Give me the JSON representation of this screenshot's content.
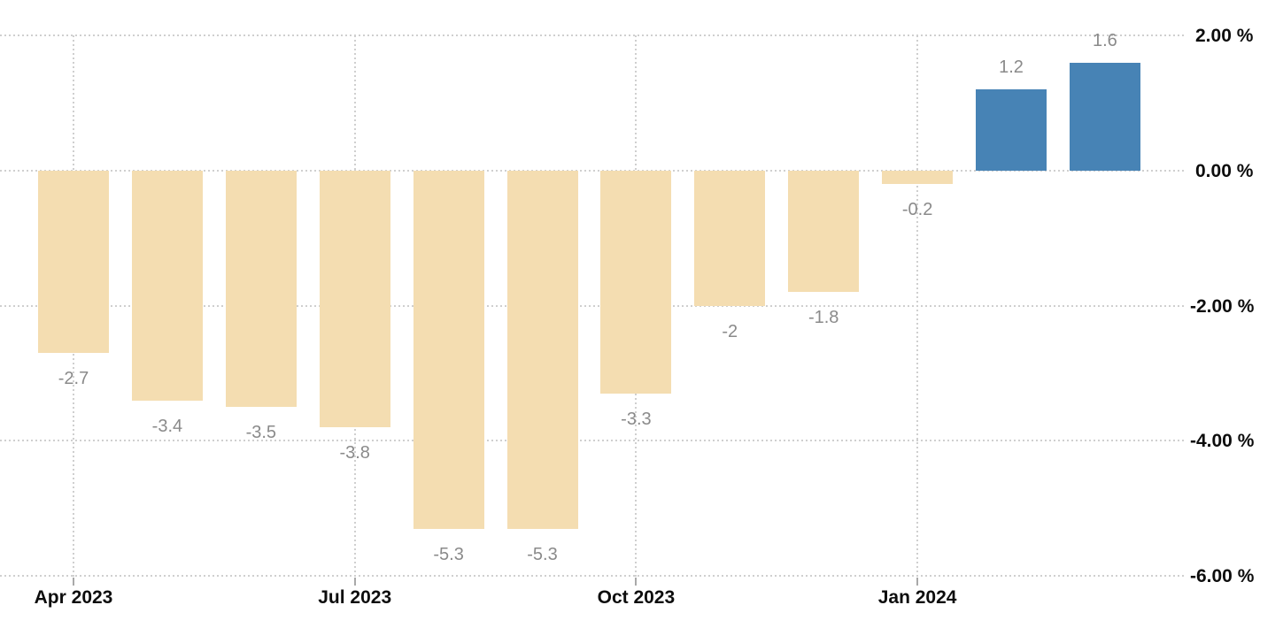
{
  "chart_data": {
    "type": "bar",
    "title": "",
    "values": [
      -2.7,
      -3.4,
      -3.5,
      -3.8,
      -5.3,
      -5.3,
      -3.3,
      -2,
      -1.8,
      -0.2,
      1.2,
      1.6
    ],
    "bar_labels": [
      "-2.7",
      "-3.4",
      "-3.5",
      "-3.8",
      "-5.3",
      "-5.3",
      "-3.3",
      "-2",
      "-1.8",
      "-0.2",
      "1.2",
      "1.6"
    ],
    "x_ticks": [
      {
        "label": "Apr 2023",
        "bar_index": 0
      },
      {
        "label": "Jul 2023",
        "bar_index": 3
      },
      {
        "label": "Oct 2023",
        "bar_index": 6
      },
      {
        "label": "Jan 2024",
        "bar_index": 9
      }
    ],
    "y_ticks": [
      {
        "value": 2,
        "label": "2.00 %"
      },
      {
        "value": 0,
        "label": "0.00 %"
      },
      {
        "value": -2,
        "label": "-2.00 %"
      },
      {
        "value": -4,
        "label": "-4.00 %"
      },
      {
        "value": -6,
        "label": "-6.00 %"
      }
    ],
    "ylim": [
      -6.8,
      2.5
    ],
    "grid": "dotted",
    "legend": "none",
    "colors": {
      "positive_bar": "#4783b5",
      "negative_bar": "#f4ddb1",
      "bar_value_label": "#8a8a8a",
      "axis_label": "#0d0d0d",
      "gridline": "#cfcfcf",
      "background": "#ffffff"
    }
  }
}
